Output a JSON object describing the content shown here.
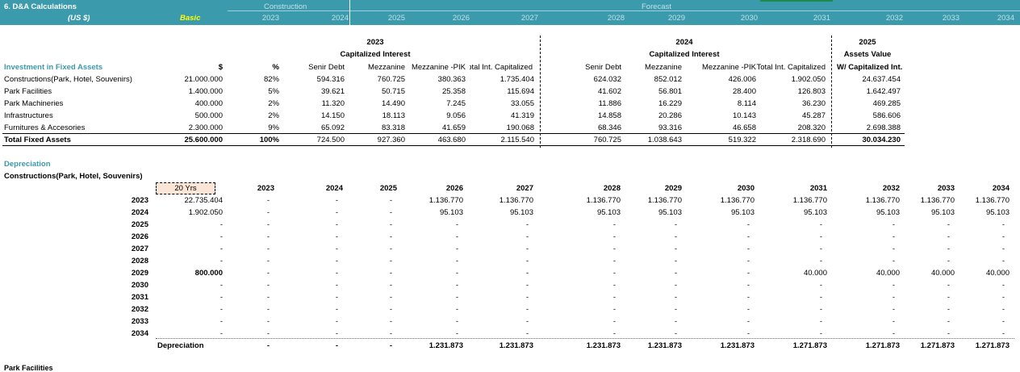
{
  "header": {
    "title": "6. D&A Calculations",
    "currency": "(US $)",
    "scenario": "Basic",
    "construction_label": "Construction",
    "forecast_label": "Forecast",
    "years": [
      "2023",
      "2024",
      "2025",
      "2026",
      "2027",
      "2028",
      "2029",
      "2030",
      "2031",
      "2032",
      "2033",
      "2034"
    ]
  },
  "investment": {
    "title": "Investment in Fixed Assets",
    "col_dollar": "$",
    "col_pct": "%",
    "year_2023": "2023",
    "year_2024": "2024",
    "year_2025": "2025",
    "capitalized_interest": "Capitalized Interest",
    "assets_value": "Assets Value",
    "with_cap_int": "W/ Capitalized Int.",
    "sub_headers": [
      "Senir Debt",
      "Mezzanine",
      "Mezzanine -PIK",
      "Total Int. Capitalized"
    ],
    "rows": [
      {
        "name": "Constructions(Park, Hotel, Souvenirs)",
        "amount": "21.000.000",
        "pct": "82%",
        "y23": [
          "594.316",
          "760.725",
          "380.363",
          "1.735.404"
        ],
        "y24": [
          "624.032",
          "852.012",
          "426.006",
          "1.902.050"
        ],
        "total": "24.637.454"
      },
      {
        "name": "Park Facilities",
        "amount": "1.400.000",
        "pct": "5%",
        "y23": [
          "39.621",
          "50.715",
          "25.358",
          "115.694"
        ],
        "y24": [
          "41.602",
          "56.801",
          "28.400",
          "126.803"
        ],
        "total": "1.642.497"
      },
      {
        "name": "Park Machineries",
        "amount": "400.000",
        "pct": "2%",
        "y23": [
          "11.320",
          "14.490",
          "7.245",
          "33.055"
        ],
        "y24": [
          "11.886",
          "16.229",
          "8.114",
          "36.230"
        ],
        "total": "469.285"
      },
      {
        "name": "Infrastructures",
        "amount": "500.000",
        "pct": "2%",
        "y23": [
          "14.150",
          "18.113",
          "9.056",
          "41.319"
        ],
        "y24": [
          "14.858",
          "20.286",
          "10.143",
          "45.287"
        ],
        "total": "586.606"
      },
      {
        "name": "Furnitures & Accesories",
        "amount": "2.300.000",
        "pct": "9%",
        "y23": [
          "65.092",
          "83.318",
          "41.659",
          "190.068"
        ],
        "y24": [
          "68.346",
          "93.316",
          "46.658",
          "208.320"
        ],
        "total": "2.698.388"
      }
    ],
    "total_row": {
      "name": "Total Fixed Assets",
      "amount": "25.600.000",
      "pct": "100%",
      "y23": [
        "724.500",
        "927.360",
        "463.680",
        "2.115.540"
      ],
      "y24": [
        "760.725",
        "1.038.643",
        "519.322",
        "2.318.690"
      ],
      "total": "30.034.230"
    }
  },
  "depreciation": {
    "title": "Depreciation",
    "subtitle": "Constructions(Park, Hotel, Souvenirs)",
    "life": "20 Yrs",
    "years": [
      "2023",
      "2024",
      "2025",
      "2026",
      "2027",
      "2028",
      "2029",
      "2030",
      "2031",
      "2032",
      "2033",
      "2034"
    ],
    "rows": [
      {
        "year": "2023",
        "base": "22.735.404",
        "vals": [
          "-",
          "-",
          "-",
          "1.136.770",
          "1.136.770",
          "1.136.770",
          "1.136.770",
          "1.136.770",
          "1.136.770",
          "1.136.770",
          "1.136.770",
          "1.136.770"
        ]
      },
      {
        "year": "2024",
        "base": "1.902.050",
        "vals": [
          "-",
          "-",
          "-",
          "95.103",
          "95.103",
          "95.103",
          "95.103",
          "95.103",
          "95.103",
          "95.103",
          "95.103",
          "95.103"
        ]
      },
      {
        "year": "2025",
        "base": "-",
        "vals": [
          "-",
          "-",
          "-",
          "-",
          "-",
          "-",
          "-",
          "-",
          "-",
          "-",
          "-",
          "-"
        ]
      },
      {
        "year": "2026",
        "base": "-",
        "vals": [
          "-",
          "-",
          "-",
          "-",
          "-",
          "-",
          "-",
          "-",
          "-",
          "-",
          "-",
          "-"
        ]
      },
      {
        "year": "2027",
        "base": "-",
        "vals": [
          "-",
          "-",
          "-",
          "-",
          "-",
          "-",
          "-",
          "-",
          "-",
          "-",
          "-",
          "-"
        ]
      },
      {
        "year": "2028",
        "base": "-",
        "vals": [
          "-",
          "-",
          "-",
          "-",
          "-",
          "-",
          "-",
          "-",
          "-",
          "-",
          "-",
          "-"
        ]
      },
      {
        "year": "2029",
        "base": "800.000",
        "vals": [
          "-",
          "-",
          "-",
          "-",
          "-",
          "-",
          "-",
          "-",
          "40.000",
          "40.000",
          "40.000",
          "40.000"
        ]
      },
      {
        "year": "2030",
        "base": "-",
        "vals": [
          "-",
          "-",
          "-",
          "-",
          "-",
          "-",
          "-",
          "-",
          "-",
          "-",
          "-",
          "-"
        ]
      },
      {
        "year": "2031",
        "base": "-",
        "vals": [
          "-",
          "-",
          "-",
          "-",
          "-",
          "-",
          "-",
          "-",
          "-",
          "-",
          "-",
          "-"
        ]
      },
      {
        "year": "2032",
        "base": "-",
        "vals": [
          "-",
          "-",
          "-",
          "-",
          "-",
          "-",
          "-",
          "-",
          "-",
          "-",
          "-",
          "-"
        ]
      },
      {
        "year": "2033",
        "base": "-",
        "vals": [
          "-",
          "-",
          "-",
          "-",
          "-",
          "-",
          "-",
          "-",
          "-",
          "-",
          "-",
          "-"
        ]
      },
      {
        "year": "2034",
        "base": "-",
        "vals": [
          "-",
          "-",
          "-",
          "-",
          "-",
          "-",
          "-",
          "-",
          "-",
          "-",
          "-",
          "-"
        ]
      }
    ],
    "total_label": "Depreciation",
    "totals": [
      "-",
      "-",
      "-",
      "1.231.873",
      "1.231.873",
      "1.231.873",
      "1.231.873",
      "1.231.873",
      "1.271.873",
      "1.271.873",
      "1.271.873",
      "1.271.873"
    ]
  },
  "footer": {
    "next_section": "Park Facilities"
  }
}
